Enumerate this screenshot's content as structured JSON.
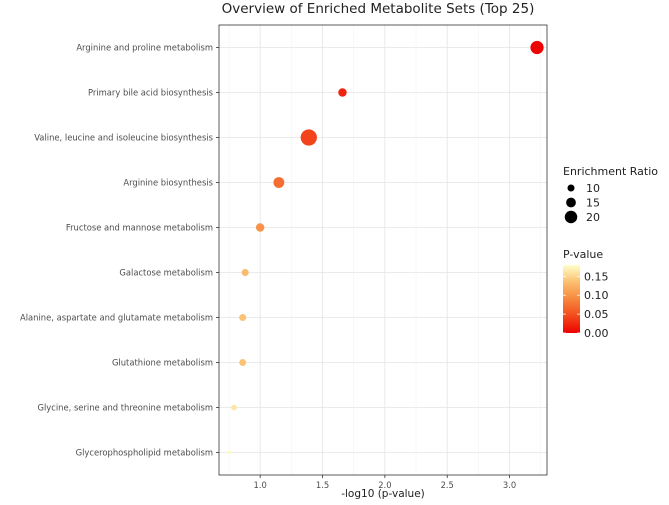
{
  "chart_data": {
    "type": "scatter",
    "title": "Overview of Enriched Metabolite Sets (Top 25)",
    "xlabel": "-log10 (p-value)",
    "ylabel": "",
    "xlim": [
      0.67,
      3.3
    ],
    "x_ticks": [
      1.0,
      1.5,
      2.0,
      2.5,
      3.0
    ],
    "x_tick_labels": [
      "1.0",
      "1.5",
      "2.0",
      "2.5",
      "3.0"
    ],
    "categories": [
      "Arginine and proline metabolism",
      "Primary bile acid biosynthesis",
      "Valine, leucine and isoleucine biosynthesis",
      "Arginine biosynthesis",
      "Fructose and mannose metabolism",
      "Galactose metabolism",
      "Alanine, aspartate and glutamate metabolism",
      "Glutathione metabolism",
      "Glycine, serine and threonine metabolism",
      "Glycerophospholipid metabolism"
    ],
    "points": [
      {
        "name": "Arginine and proline metabolism",
        "neg_log10_p": 3.22,
        "p_value": 0.0006,
        "enrichment_ratio": 16.5
      },
      {
        "name": "Primary bile acid biosynthesis",
        "neg_log10_p": 1.66,
        "p_value": 0.022,
        "enrichment_ratio": 9.5
      },
      {
        "name": "Valine, leucine and isoleucine biosynthesis",
        "neg_log10_p": 1.39,
        "p_value": 0.041,
        "enrichment_ratio": 21.0
      },
      {
        "name": "Arginine biosynthesis",
        "neg_log10_p": 1.15,
        "p_value": 0.071,
        "enrichment_ratio": 13.0
      },
      {
        "name": "Fructose and mannose metabolism",
        "neg_log10_p": 1.0,
        "p_value": 0.1,
        "enrichment_ratio": 9.5
      },
      {
        "name": "Galactose metabolism",
        "neg_log10_p": 0.88,
        "p_value": 0.132,
        "enrichment_ratio": 7.5
      },
      {
        "name": "Alanine, aspartate and glutamate metabolism",
        "neg_log10_p": 0.86,
        "p_value": 0.138,
        "enrichment_ratio": 7.5
      },
      {
        "name": "Glutathione metabolism",
        "neg_log10_p": 0.86,
        "p_value": 0.138,
        "enrichment_ratio": 7.2
      },
      {
        "name": "Glycine, serine and threonine metabolism",
        "neg_log10_p": 0.79,
        "p_value": 0.162,
        "enrichment_ratio": 5.5
      },
      {
        "name": "Glycerophospholipid metabolism",
        "neg_log10_p": 0.75,
        "p_value": 0.178,
        "enrichment_ratio": 3.0
      }
    ],
    "size_legend": {
      "title": "Enrichment Ratio",
      "values": [
        10,
        15,
        20
      ],
      "labels": [
        "10",
        "15",
        "20"
      ]
    },
    "color_legend": {
      "title": "P-value",
      "range": [
        0.0,
        0.18
      ],
      "ticks": [
        0.15,
        0.1,
        0.05,
        0.0
      ],
      "labels": [
        "0.15",
        "0.10",
        "0.05",
        "0.00"
      ],
      "color_low": "#ee0000",
      "color_high": "#ffffcc"
    },
    "grid": true,
    "legend_position": "right"
  }
}
